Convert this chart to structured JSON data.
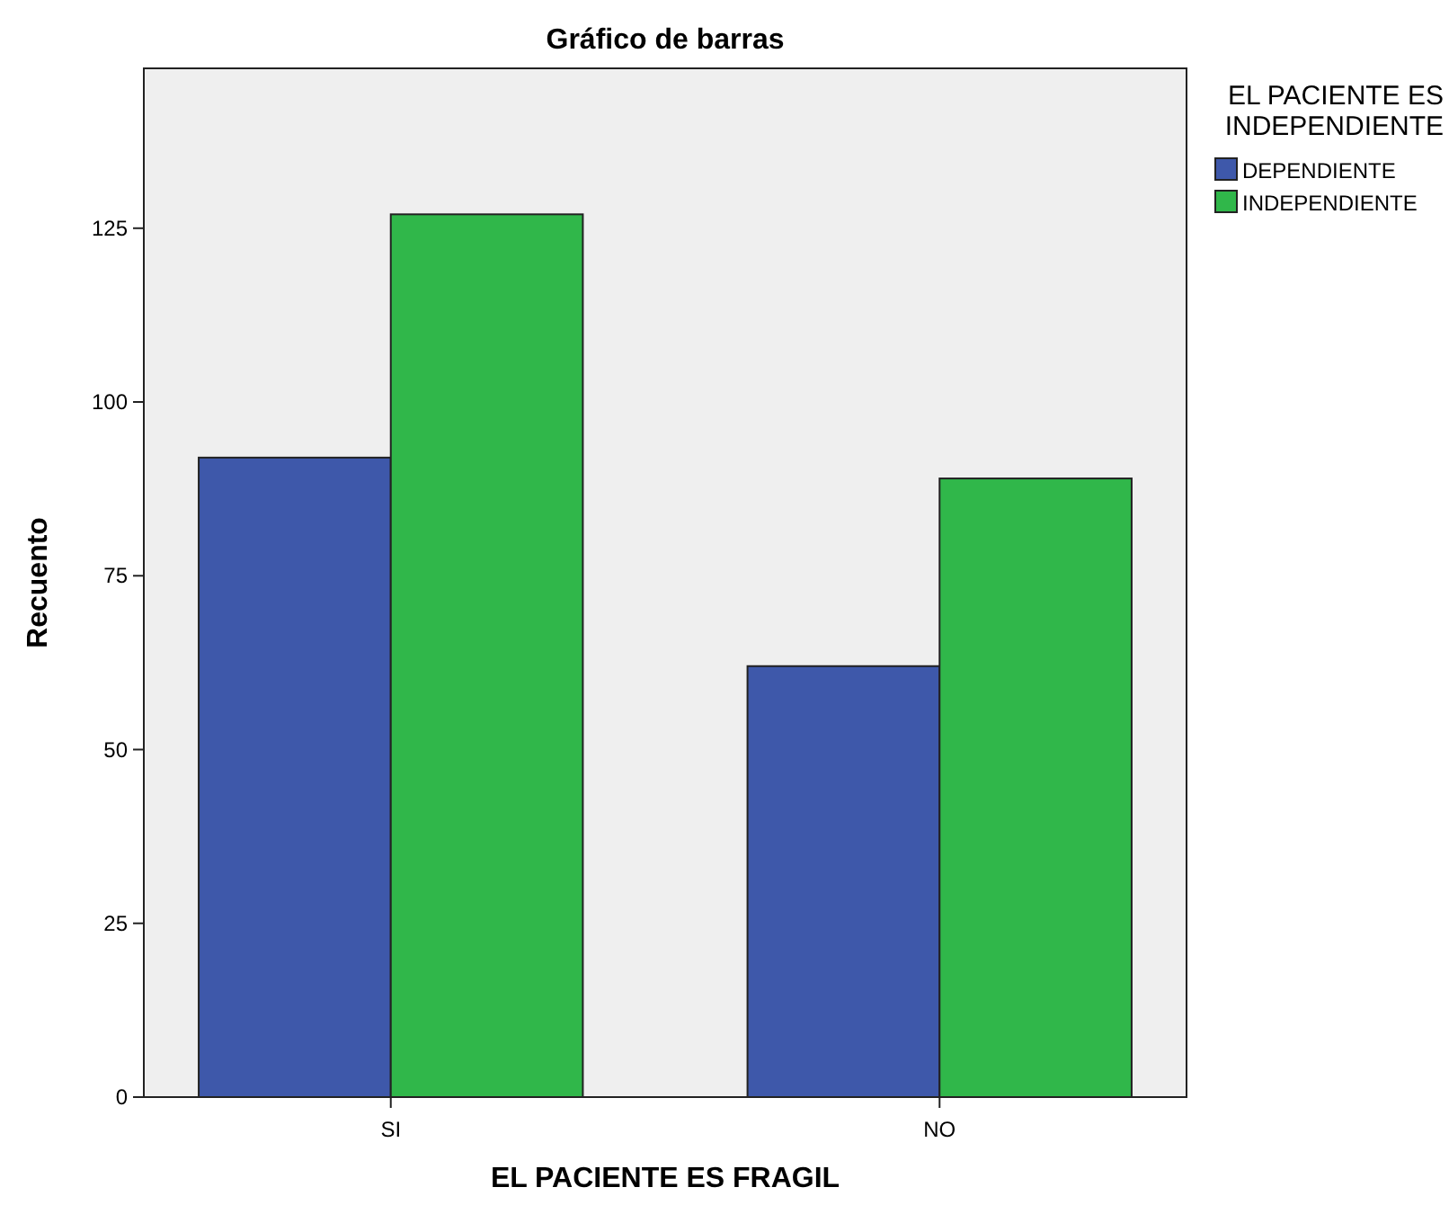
{
  "chart_data": {
    "type": "bar",
    "title": "Gráfico de barras",
    "xlabel": "EL PACIENTE ES FRAGIL",
    "ylabel": "Recuento",
    "legend_title": "EL PACIENTE ES INDEPENDIENTE",
    "categories": [
      "SI",
      "NO"
    ],
    "series": [
      {
        "name": "DEPENDIENTE",
        "color": "#3e58aa",
        "values": [
          92,
          62
        ]
      },
      {
        "name": "INDEPENDIENTE",
        "color": "#30b74a",
        "values": [
          127,
          89
        ]
      }
    ],
    "ylim": [
      0,
      148
    ],
    "yticks": [
      0,
      25,
      50,
      75,
      100,
      125
    ],
    "grid": false,
    "legend": "right"
  }
}
